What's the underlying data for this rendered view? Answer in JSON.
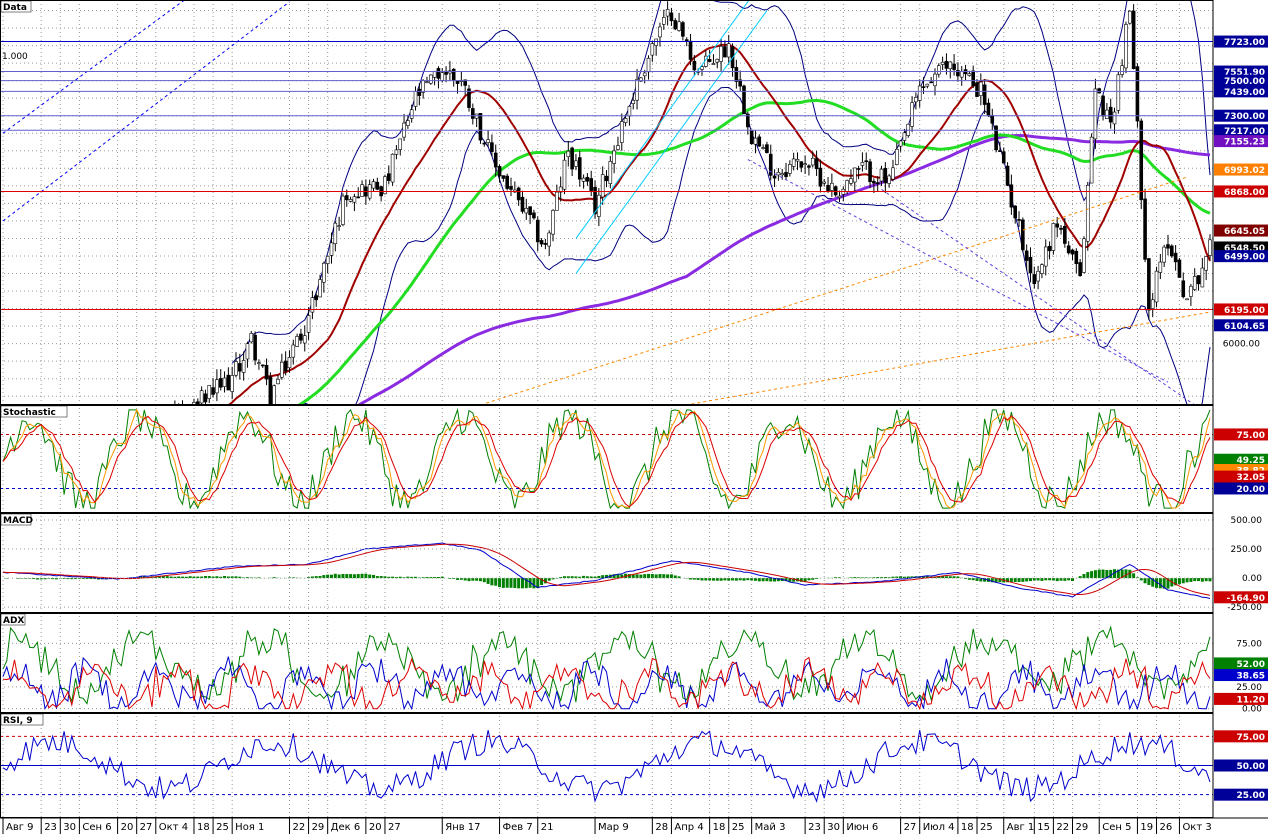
{
  "chart_data": {
    "type": "line",
    "x_axis": {
      "ticks": [
        {
          "label": "Авг 9",
          "i": 0
        },
        {
          "label": "23",
          "i": 10
        },
        {
          "label": "30",
          "i": 15
        },
        {
          "label": "Сен 6",
          "i": 20
        },
        {
          "label": "20",
          "i": 30
        },
        {
          "label": "27",
          "i": 35
        },
        {
          "label": "Окт 4",
          "i": 40
        },
        {
          "label": "18",
          "i": 50
        },
        {
          "label": "25",
          "i": 55
        },
        {
          "label": "Ноя 1",
          "i": 60
        },
        {
          "label": "22",
          "i": 75
        },
        {
          "label": "29",
          "i": 80
        },
        {
          "label": "Дек 6",
          "i": 85
        },
        {
          "label": "20",
          "i": 95
        },
        {
          "label": "27",
          "i": 100
        },
        {
          "label": "Янв 17",
          "i": 115
        },
        {
          "label": "Фев 7",
          "i": 130
        },
        {
          "label": "21",
          "i": 140
        },
        {
          "label": "Мар 9",
          "i": 155
        },
        {
          "label": "28",
          "i": 170
        },
        {
          "label": "Апр 4",
          "i": 175
        },
        {
          "label": "18",
          "i": 185
        },
        {
          "label": "25",
          "i": 190
        },
        {
          "label": "Май 3",
          "i": 196
        },
        {
          "label": "23",
          "i": 210
        },
        {
          "label": "30",
          "i": 215
        },
        {
          "label": "Июн 6",
          "i": 220
        },
        {
          "label": "27",
          "i": 235
        },
        {
          "label": "Июл 4",
          "i": 240
        },
        {
          "label": "18",
          "i": 250
        },
        {
          "label": "25",
          "i": 255
        },
        {
          "label": "Авг 1",
          "i": 262
        },
        {
          "label": "15",
          "i": 270
        },
        {
          "label": "22",
          "i": 275
        },
        {
          "label": "29",
          "i": 280
        },
        {
          "label": "Сен 5",
          "i": 287
        },
        {
          "label": "19",
          "i": 297
        },
        {
          "label": "26",
          "i": 302
        },
        {
          "label": "Окт 3",
          "i": 308
        }
      ],
      "count": 316
    },
    "panes": [
      {
        "name": "Data",
        "title": "Data",
        "ylim": [
          5650,
          7960
        ],
        "yticks": [
          6000
        ],
        "scale_label": "1.000",
        "price_anchors": [
          {
            "i": 0,
            "v": 4900
          },
          {
            "i": 60,
            "v": 5800
          },
          {
            "i": 65,
            "v": 6020
          },
          {
            "i": 70,
            "v": 5700
          },
          {
            "i": 80,
            "v": 6150
          },
          {
            "i": 90,
            "v": 6870
          },
          {
            "i": 100,
            "v": 6900
          },
          {
            "i": 108,
            "v": 7400
          },
          {
            "i": 115,
            "v": 7560
          },
          {
            "i": 120,
            "v": 7500
          },
          {
            "i": 128,
            "v": 7050
          },
          {
            "i": 135,
            "v": 6800
          },
          {
            "i": 142,
            "v": 6550
          },
          {
            "i": 148,
            "v": 7100
          },
          {
            "i": 155,
            "v": 6780
          },
          {
            "i": 162,
            "v": 7250
          },
          {
            "i": 170,
            "v": 7700
          },
          {
            "i": 175,
            "v": 7900
          },
          {
            "i": 182,
            "v": 7550
          },
          {
            "i": 190,
            "v": 7700
          },
          {
            "i": 196,
            "v": 7200
          },
          {
            "i": 202,
            "v": 6980
          },
          {
            "i": 210,
            "v": 7050
          },
          {
            "i": 218,
            "v": 6860
          },
          {
            "i": 225,
            "v": 7000
          },
          {
            "i": 232,
            "v": 6920
          },
          {
            "i": 240,
            "v": 7450
          },
          {
            "i": 248,
            "v": 7600
          },
          {
            "i": 256,
            "v": 7450
          },
          {
            "i": 263,
            "v": 6900
          },
          {
            "i": 270,
            "v": 6350
          },
          {
            "i": 276,
            "v": 6700
          },
          {
            "i": 282,
            "v": 6350
          },
          {
            "i": 286,
            "v": 7450
          },
          {
            "i": 290,
            "v": 7250
          },
          {
            "i": 295,
            "v": 7900
          },
          {
            "i": 300,
            "v": 6200
          },
          {
            "i": 305,
            "v": 6600
          },
          {
            "i": 310,
            "v": 6250
          },
          {
            "i": 316,
            "v": 6548
          }
        ],
        "hlines": [
          {
            "v": 7723.0,
            "color": "#0000cc",
            "style": "solid"
          },
          {
            "v": 7551.9,
            "color": "#6060cc",
            "style": "solid"
          },
          {
            "v": 7500.0,
            "color": "#6060cc",
            "style": "solid"
          },
          {
            "v": 7439.0,
            "color": "#6060cc",
            "style": "solid"
          },
          {
            "v": 7300.0,
            "color": "#6060cc",
            "style": "solid"
          },
          {
            "v": 7217.0,
            "color": "#6060cc",
            "style": "solid"
          },
          {
            "v": 6868.0,
            "color": "#e00000",
            "style": "solid"
          },
          {
            "v": 6195.0,
            "color": "#e00000",
            "style": "solid"
          }
        ],
        "trendlines": [
          {
            "from": [
              0,
              7200
            ],
            "to": [
              75,
              8400
            ],
            "color": "#0000ff",
            "style": "dashed"
          },
          {
            "from": [
              0,
              6700
            ],
            "to": [
              75,
              7950
            ],
            "color": "#0000ff",
            "style": "dashed"
          },
          {
            "from": [
              125,
              5650
            ],
            "to": [
              310,
              6950
            ],
            "color": "#ff8800",
            "style": "dashed"
          },
          {
            "from": [
              140,
              5500
            ],
            "to": [
              316,
              6180
            ],
            "color": "#ff8800",
            "style": "dashed"
          },
          {
            "from": [
              150,
              6400
            ],
            "to": [
              200,
              7900
            ],
            "color": "#00ccff",
            "style": "solid"
          },
          {
            "from": [
              150,
              6600
            ],
            "to": [
              200,
              8100
            ],
            "color": "#00ccff",
            "style": "solid"
          },
          {
            "from": [
              195,
              7050
            ],
            "to": [
              305,
              5780
            ],
            "color": "#6040e0",
            "style": "dashed"
          },
          {
            "from": [
              230,
              6880
            ],
            "to": [
              312,
              5650
            ],
            "color": "#6040e0",
            "style": "dashed"
          }
        ],
        "tags": [
          {
            "label": "7723.00",
            "v": 7723.0,
            "color": "#000099"
          },
          {
            "label": "7551.90",
            "v": 7551.9,
            "color": "#000099"
          },
          {
            "label": "7500.00",
            "v": 7500.0,
            "color": "#000099"
          },
          {
            "label": "7439.00",
            "v": 7439.0,
            "color": "#000099"
          },
          {
            "label": "7300.00",
            "v": 7300.0,
            "color": "#000099"
          },
          {
            "label": "7217.00",
            "v": 7217.0,
            "color": "#000099"
          },
          {
            "label": "7155.23",
            "v": 7155.23,
            "color": "#7010c0"
          },
          {
            "label": "6993.02",
            "v": 6993.02,
            "color": "#ff8000"
          },
          {
            "label": "6868.00",
            "v": 6868.0,
            "color": "#cc0000"
          },
          {
            "label": "6645.05",
            "v": 6645.05,
            "color": "#800000"
          },
          {
            "label": "6548.50",
            "v": 6548.5,
            "color": "#000000"
          },
          {
            "label": "6499.00",
            "v": 6499.0,
            "color": "#000099"
          },
          {
            "label": "6195.00",
            "v": 6195.0,
            "color": "#cc0000"
          },
          {
            "label": "6104.65",
            "v": 6104.65,
            "color": "#000099"
          }
        ]
      },
      {
        "name": "Stochastic",
        "title": "Stochastic",
        "ylim": [
          -5,
          105
        ],
        "levels": [
          {
            "v": 75,
            "color": "#cc0000"
          },
          {
            "v": 20,
            "color": "#0000cc"
          }
        ],
        "tags": [
          {
            "label": "75.00",
            "v": 75,
            "color": "#cc0000"
          },
          {
            "label": "49.25",
            "v": 49.25,
            "color": "#008000"
          },
          {
            "label": "38.82",
            "v": 38.82,
            "color": "#ff8800"
          },
          {
            "label": "32.05",
            "v": 32.05,
            "color": "#cc0000"
          },
          {
            "label": "20.00",
            "v": 20,
            "color": "#000099"
          }
        ]
      },
      {
        "name": "MACD",
        "title": "MACD",
        "ylim": [
          -300,
          560
        ],
        "yticks": [
          500,
          250,
          0,
          -250
        ],
        "ytick_labels": [
          "500.00",
          "250.00",
          "0.00",
          "-250.00"
        ],
        "anchors": [
          {
            "i": 0,
            "v": 50
          },
          {
            "i": 30,
            "v": -10
          },
          {
            "i": 60,
            "v": 100
          },
          {
            "i": 80,
            "v": 120
          },
          {
            "i": 95,
            "v": 250
          },
          {
            "i": 115,
            "v": 300
          },
          {
            "i": 125,
            "v": 240
          },
          {
            "i": 140,
            "v": -80
          },
          {
            "i": 155,
            "v": -20
          },
          {
            "i": 175,
            "v": 150
          },
          {
            "i": 195,
            "v": 50
          },
          {
            "i": 210,
            "v": -60
          },
          {
            "i": 230,
            "v": -30
          },
          {
            "i": 250,
            "v": 50
          },
          {
            "i": 265,
            "v": -80
          },
          {
            "i": 280,
            "v": -160
          },
          {
            "i": 295,
            "v": 120
          },
          {
            "i": 305,
            "v": -100
          },
          {
            "i": 316,
            "v": -175
          }
        ],
        "tags": [
          {
            "label": "-164.90",
            "v": -164.9,
            "color": "#cc0000"
          }
        ]
      },
      {
        "name": "ADX",
        "title": "ADX",
        "ylim": [
          -5,
          110
        ],
        "yticks": [
          75,
          25,
          0
        ],
        "ytick_labels": [
          "75.00",
          "25.00",
          "0.00"
        ],
        "tags": [
          {
            "label": "52.00",
            "v": 52,
            "color": "#008000"
          },
          {
            "label": "38.65",
            "v": 38.65,
            "color": "#0000cc"
          },
          {
            "label": "11.20",
            "v": 11.2,
            "color": "#cc0000"
          }
        ]
      },
      {
        "name": "RSI",
        "title": "RSI, 9",
        "ylim": [
          5,
          95
        ],
        "levels": [
          {
            "v": 75,
            "color": "#cc0000"
          },
          {
            "v": 50,
            "color": "#0000cc"
          },
          {
            "v": 25,
            "color": "#0000cc"
          }
        ],
        "tags": [
          {
            "label": "75.00",
            "v": 75,
            "color": "#cc0000"
          },
          {
            "label": "50.00",
            "v": 50,
            "color": "#000099"
          },
          {
            "label": "25.00",
            "v": 25,
            "color": "#000099"
          }
        ]
      }
    ],
    "colors": {
      "price": "#000000",
      "bollinger": "#000080",
      "ma_fast": "#a00000",
      "ma_mid": "#22dd22",
      "ma_slow": "#8a2be2",
      "stoch_k": "#008000",
      "stoch_d1": "#ff9900",
      "stoch_d2": "#dd0000",
      "macd_line": "#0000cc",
      "macd_signal": "#cc0000",
      "macd_hist": "#008000",
      "adx": "#008000",
      "di_plus": "#0000cc",
      "di_minus": "#dd0000",
      "rsi": "#0000cc",
      "grid": "#9a9a9a"
    }
  }
}
